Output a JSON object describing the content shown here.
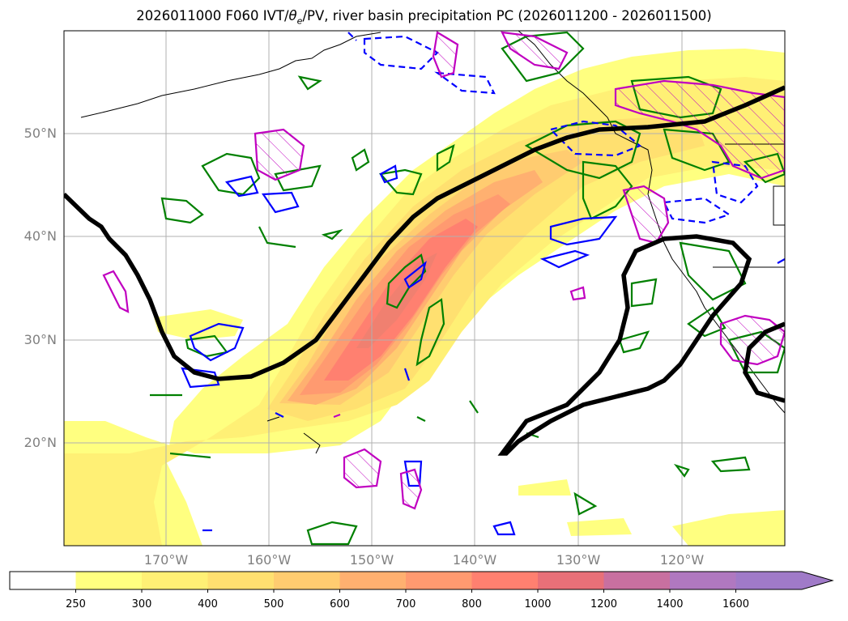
{
  "title": {
    "prefix": "2026011000 F060 IVT/",
    "theta": "θ",
    "theta_sub": "e",
    "suffix": "/PV, river basin precipitation PC (2026011200 - 2026011500)"
  },
  "map": {
    "lon_range": [
      -180,
      -110
    ],
    "lat_range": [
      10,
      60
    ],
    "lat_labels": [
      "50°N",
      "40°N",
      "30°N",
      "20°N"
    ],
    "lon_labels": [
      "170°W",
      "160°W",
      "150°W",
      "140°W",
      "130°W",
      "120°W"
    ],
    "background": "#ffffff",
    "grid_color": "#b0b0b0"
  },
  "colorbar": {
    "ticks": [
      "250",
      "300",
      "400",
      "500",
      "600",
      "700",
      "800",
      "1000",
      "1200",
      "1400",
      "1600"
    ],
    "colors": [
      "#ffff80",
      "#fff075",
      "#ffe070",
      "#ffcc70",
      "#ffb070",
      "#ff9a70",
      "#ff8070",
      "#e87078",
      "#c870a0",
      "#b078c0",
      "#a07ac8"
    ],
    "extend": "max"
  },
  "legend_colors": {
    "theta_e_contour": "#008000",
    "pv_positive": "#0000ff",
    "pv_negative_dashed": "#0000ff",
    "precip_pc": "#c000c0",
    "pv_boundary": "#000000"
  }
}
